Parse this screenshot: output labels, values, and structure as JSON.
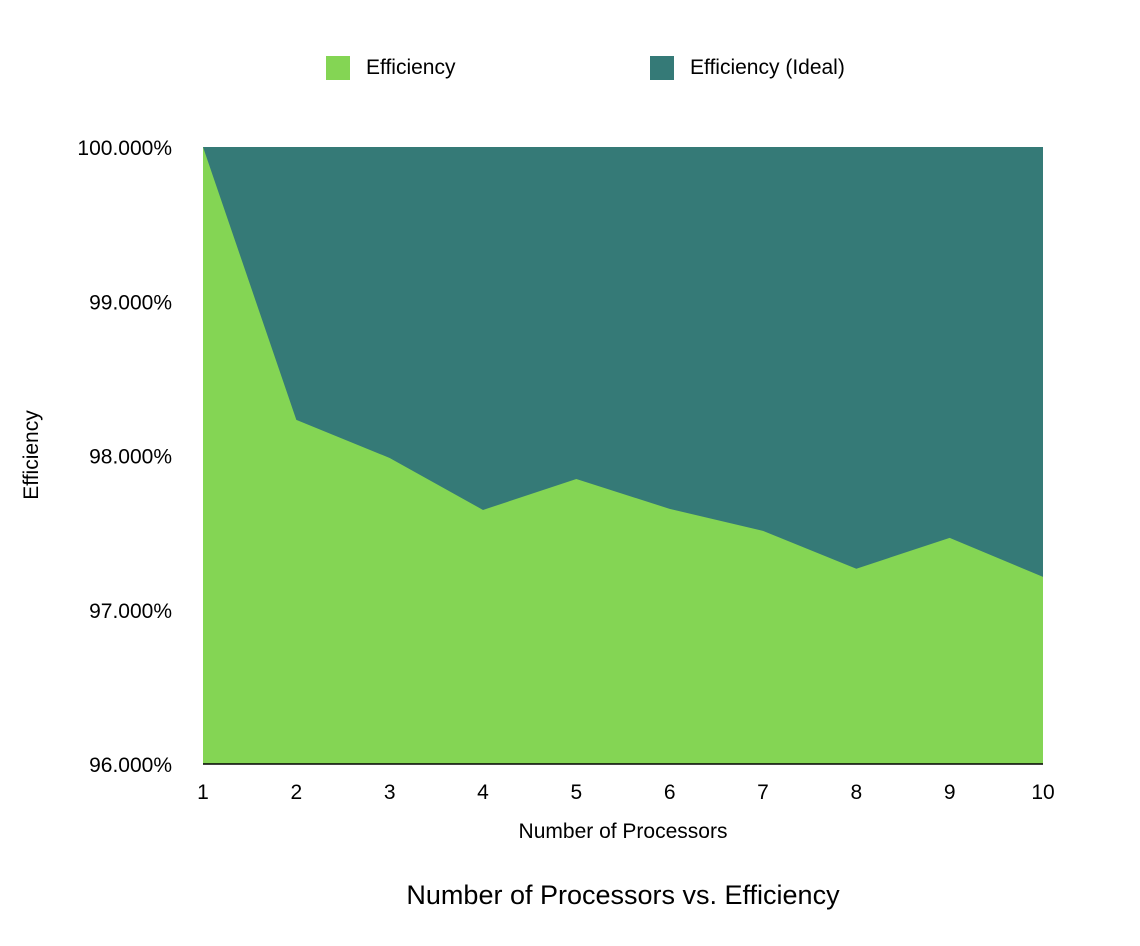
{
  "chart_data": {
    "type": "area",
    "title": "Number of Processors vs. Efficiency",
    "xlabel": "Number of Processors",
    "ylabel": "Efficiency",
    "x": [
      1,
      2,
      3,
      4,
      5,
      6,
      7,
      8,
      9,
      10
    ],
    "ylim": [
      96,
      100
    ],
    "yticks": [
      96,
      97,
      98,
      99,
      100
    ],
    "ytick_labels": [
      "96.000%",
      "97.000%",
      "98.000%",
      "99.000%",
      "100.000%"
    ],
    "legend_position": "top",
    "grid": false,
    "series": [
      {
        "name": "Efficiency",
        "color": "#84d554",
        "values": [
          100.0,
          98.231,
          97.984,
          97.647,
          97.848,
          97.654,
          97.511,
          97.266,
          97.466,
          97.213
        ]
      },
      {
        "name": "Efficiency (Ideal)",
        "color": "#357a77",
        "values": [
          100,
          100,
          100,
          100,
          100,
          100,
          100,
          100,
          100,
          100
        ]
      }
    ]
  }
}
